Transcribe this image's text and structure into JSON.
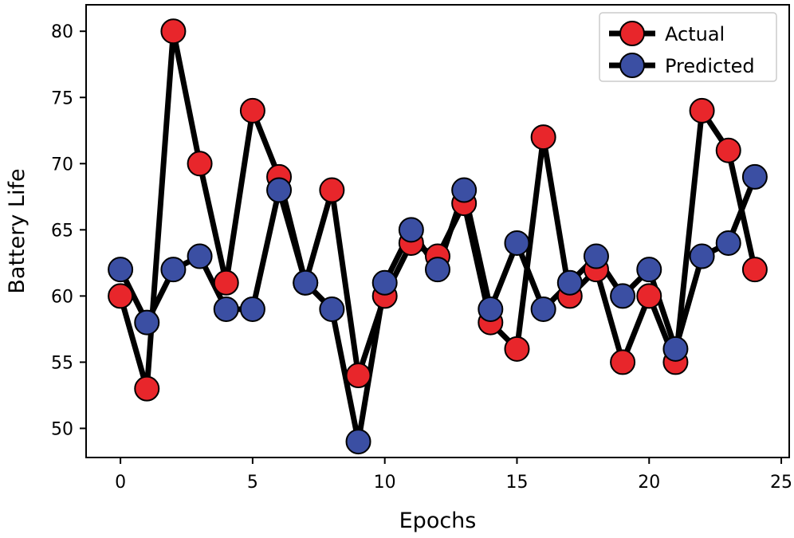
{
  "chart_data": {
    "type": "line",
    "title": "",
    "xlabel": "Epochs",
    "ylabel": "Battery Life",
    "xlim": [
      -1.3,
      25.3
    ],
    "ylim": [
      47.8,
      82
    ],
    "xticks": [
      0,
      5,
      10,
      15,
      20,
      25
    ],
    "yticks": [
      50,
      55,
      60,
      65,
      70,
      75,
      80
    ],
    "grid": false,
    "legend_position": "top-right",
    "x": [
      0,
      1,
      2,
      3,
      4,
      5,
      6,
      7,
      8,
      9,
      10,
      11,
      12,
      13,
      14,
      15,
      16,
      17,
      18,
      19,
      20,
      21,
      22,
      23,
      24
    ],
    "series": [
      {
        "name": "Actual",
        "color": "#e8262b",
        "values": [
          60,
          53,
          80,
          70,
          61,
          74,
          69,
          61,
          68,
          54,
          60,
          64,
          63,
          67,
          58,
          56,
          72,
          60,
          62,
          55,
          60,
          55,
          74,
          71,
          62
        ]
      },
      {
        "name": "Predicted",
        "color": "#3b4fa3",
        "values": [
          62,
          58,
          62,
          63,
          59,
          59,
          68,
          61,
          59,
          49,
          61,
          65,
          62,
          68,
          59,
          64,
          59,
          61,
          63,
          60,
          62,
          56,
          63,
          64,
          69
        ]
      }
    ]
  }
}
